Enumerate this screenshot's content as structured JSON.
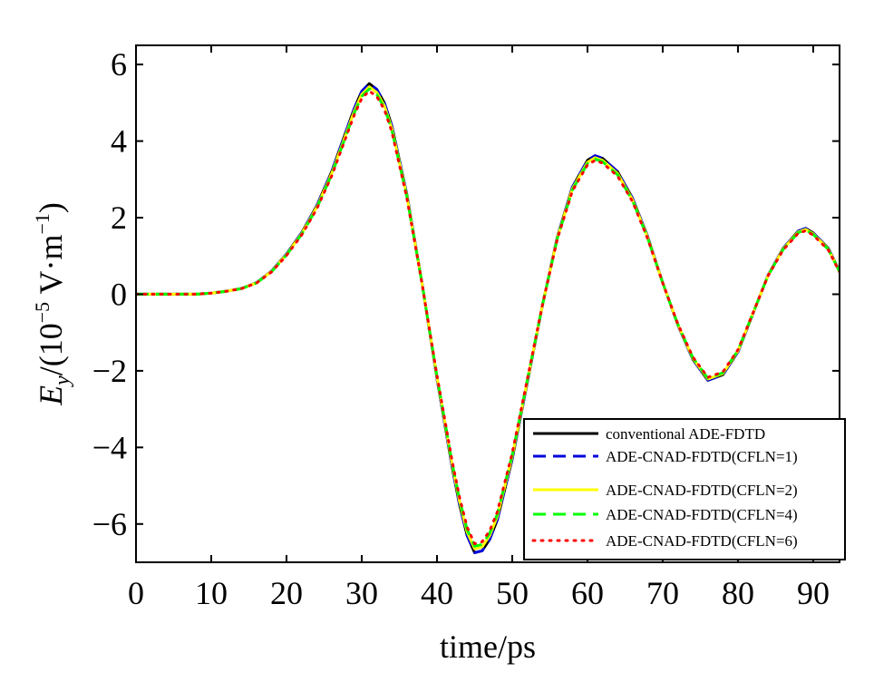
{
  "chart_data": {
    "type": "line",
    "title": "",
    "xlabel": "time/ps",
    "ylabel": {
      "prefix": "E",
      "subscript": "y",
      "slash_open": "/(10",
      "exponent": "−5",
      "unit": " V·m",
      "unit_exponent": "−1",
      "close": ")"
    },
    "xlim": [
      0,
      93.5
    ],
    "ylim": [
      -7,
      6.5
    ],
    "xticks": [
      0,
      10,
      20,
      30,
      40,
      50,
      60,
      70,
      80,
      90
    ],
    "xtick_labels": [
      "0",
      "10",
      "20",
      "30",
      "40",
      "50",
      "60",
      "70",
      "80",
      "90"
    ],
    "yticks": [
      -6,
      -4,
      -2,
      0,
      2,
      4,
      6
    ],
    "ytick_labels": [
      "−6",
      "−4",
      "−2",
      "0",
      "2",
      "4",
      "6"
    ],
    "grid": false,
    "legend_position": "bottom-right",
    "base_curve": {
      "x": [
        0,
        8,
        10,
        12,
        14,
        16,
        18,
        20,
        22,
        24,
        26,
        28,
        29,
        30,
        31,
        32,
        33,
        34,
        36,
        38,
        40,
        42,
        43,
        44,
        45,
        46,
        47,
        48,
        50,
        52,
        54,
        56,
        58,
        60,
        61,
        62,
        64,
        66,
        68,
        70,
        72,
        74,
        76,
        78,
        80,
        82,
        84,
        86,
        88,
        89,
        90,
        92,
        93.5
      ],
      "y": [
        0,
        0,
        0.03,
        0.08,
        0.15,
        0.3,
        0.6,
        1.05,
        1.6,
        2.3,
        3.2,
        4.3,
        4.85,
        5.3,
        5.5,
        5.35,
        5.0,
        4.4,
        2.6,
        0.3,
        -2.2,
        -4.5,
        -5.5,
        -6.3,
        -6.75,
        -6.7,
        -6.4,
        -5.9,
        -4.3,
        -2.3,
        -0.3,
        1.5,
        2.8,
        3.5,
        3.62,
        3.55,
        3.2,
        2.5,
        1.5,
        0.3,
        -0.8,
        -1.7,
        -2.25,
        -2.1,
        -1.5,
        -0.5,
        0.5,
        1.2,
        1.65,
        1.72,
        1.6,
        1.2,
        0.6
      ]
    },
    "series": [
      {
        "name": "conventional ADE-FDTD",
        "color": "#000000",
        "dash": "solid",
        "scale": 1.0
      },
      {
        "name": "ADE-CNAD-FDTD(CFLN=1)",
        "color": "#0000dd",
        "dash": "dash",
        "scale": 1.0
      },
      {
        "name": "ADE-CNAD-FDTD(CFLN=2)",
        "color": "#ffff00",
        "dash": "solid",
        "scale": 0.985
      },
      {
        "name": "ADE-CNAD-FDTD(CFLN=4)",
        "color": "#00ff00",
        "dash": "dash",
        "scale": 0.975
      },
      {
        "name": "ADE-CNAD-FDTD(CFLN=6)",
        "color": "#ff0000",
        "dash": "dot",
        "scale": 0.965
      }
    ]
  }
}
